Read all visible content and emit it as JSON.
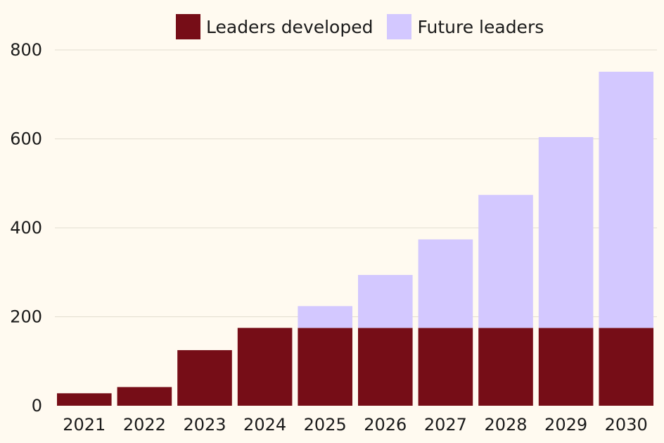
{
  "chart_data": {
    "type": "bar",
    "stacked": true,
    "categories": [
      "2021",
      "2022",
      "2023",
      "2024",
      "2025",
      "2026",
      "2027",
      "2028",
      "2029",
      "2030"
    ],
    "series": [
      {
        "name": "Leaders developed",
        "color": "#760d17",
        "values": [
          28,
          42,
          125,
          175,
          175,
          175,
          175,
          175,
          175,
          175
        ]
      },
      {
        "name": "Future leaders",
        "color": "#d3c8ff",
        "values": [
          0,
          0,
          0,
          0,
          49,
          119,
          199,
          299,
          429,
          576
        ]
      }
    ],
    "title": "",
    "xlabel": "",
    "ylabel": "",
    "ylim": [
      0,
      800
    ],
    "yticks": [
      "0",
      "200",
      "400",
      "600",
      "800"
    ],
    "grid": true,
    "legend_position": "top"
  }
}
